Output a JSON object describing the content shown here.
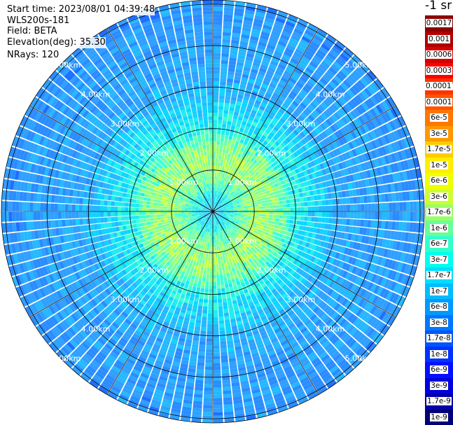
{
  "info": {
    "start_time": "Start time: 2023/08/01 04:39:48",
    "station": "WLS200s-181",
    "field": "Field: BETA",
    "elevation": "Elevation(deg): 35.30",
    "nrays": "NRays: 120"
  },
  "colorbar": {
    "units": "-1 sr",
    "entries": [
      {
        "label": "0.0017",
        "color": "#8b0000"
      },
      {
        "label": "0.001",
        "color": "#b00000"
      },
      {
        "label": "0.0006",
        "color": "#d80000"
      },
      {
        "label": "0.0003",
        "color": "#ff0000"
      },
      {
        "label": "0.00017",
        "color": "#ff3300"
      },
      {
        "label": "0.0001",
        "color": "#ff5500"
      },
      {
        "label": "6e-5",
        "color": "#ff7700"
      },
      {
        "label": "3e-5",
        "color": "#ff9900"
      },
      {
        "label": "1.7e-5",
        "color": "#ffcc00"
      },
      {
        "label": "1e-5",
        "color": "#ffee00"
      },
      {
        "label": "6e-6",
        "color": "#eeff00"
      },
      {
        "label": "3e-6",
        "color": "#ccff33"
      },
      {
        "label": "1.7e-6",
        "color": "#99ff66"
      },
      {
        "label": "1e-6",
        "color": "#66ff99"
      },
      {
        "label": "6e-7",
        "color": "#33ffcc"
      },
      {
        "label": "3e-7",
        "color": "#00ffee"
      },
      {
        "label": "1.7e-7",
        "color": "#00ddff"
      },
      {
        "label": "1e-7",
        "color": "#00bbff"
      },
      {
        "label": "6e-8",
        "color": "#0099ff"
      },
      {
        "label": "3e-8",
        "color": "#0077ff"
      },
      {
        "label": "1.7e-8",
        "color": "#0055ff"
      },
      {
        "label": "1e-8",
        "color": "#0033ff"
      },
      {
        "label": "6e-9",
        "color": "#0011ff"
      },
      {
        "label": "3e-9",
        "color": "#0000dd"
      },
      {
        "label": "1.7e-9",
        "color": "#0000aa"
      },
      {
        "label": "1e-9",
        "color": "#000077"
      }
    ]
  },
  "range_rings": [
    "1.00km",
    "2.00km",
    "3.00km",
    "4.00km",
    "5.00km"
  ],
  "max_range_km": 5.1
}
